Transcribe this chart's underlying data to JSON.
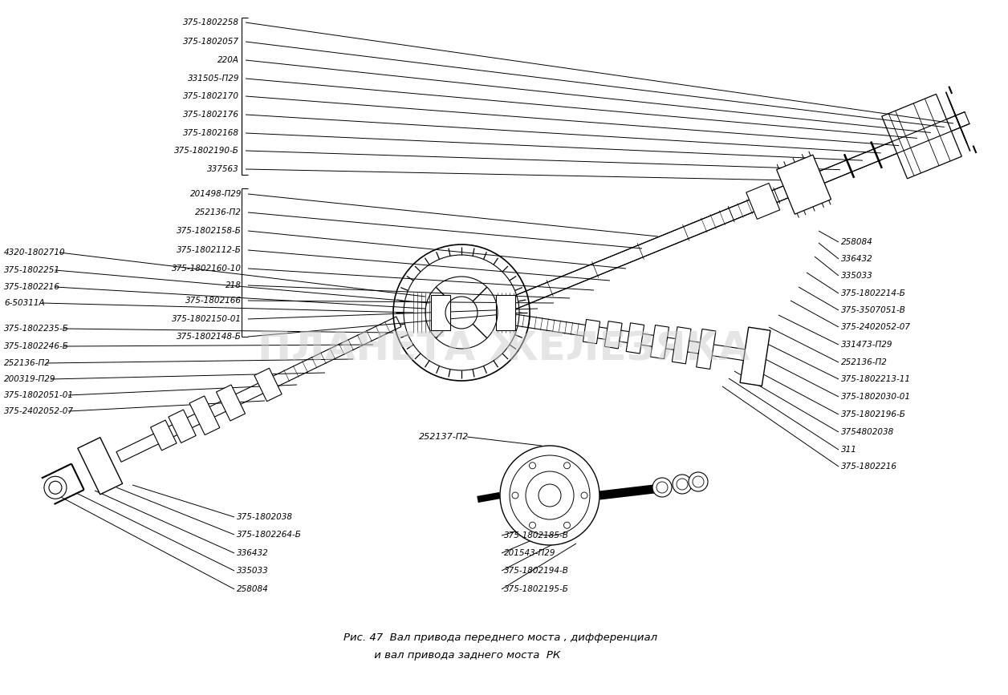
{
  "title_line1": "Рис. 47  Вал привода переднего моста , дифференциал",
  "title_line2": "         и вал привода заднего моста  РК",
  "background_color": "#ffffff",
  "fig_width": 12.56,
  "fig_height": 8.67,
  "watermark": "ПЛАНЕТА ЖЕЛЕЗЯКА",
  "group1_labels": [
    "375-1802258",
    "375-1802057",
    "220А",
    "331505-П29",
    "375-1802170",
    "375-1802176",
    "375-1802168",
    "375-1802190-Б",
    "337563"
  ],
  "group2_labels": [
    "201498-П29",
    "252136-П2",
    "375-1802158-Б",
    "375-1802112-Б",
    "375-1802160-10",
    "218",
    "375-1802166",
    "375-1802150-01",
    "375-1802148-Б"
  ],
  "left_labels": [
    "4320-1802710",
    "375-1802251",
    "375-1802216",
    "6-50311А",
    "",
    "375-1802235-Б",
    "375-1802246-Б",
    "252136-П2",
    "200319-П29",
    "375-1802051-01",
    "375-2402052-07"
  ],
  "bottom_left_labels": [
    "375-1802038",
    "375-1802264-Б",
    "336432",
    "335033",
    "258084"
  ],
  "right_labels": [
    "258084",
    "336432",
    "335033",
    "375-1802214-Б",
    "375-3507051-В",
    "375-2402052-07",
    "331473-П29",
    "252136-П2",
    "375-1802213-11",
    "375-1802030-01",
    "375-1802196-Б",
    "3754802038",
    "311",
    "375-1802216"
  ],
  "bottom_center_label": "252137-П2",
  "bottom_center_labels": [
    "375-1802185-В",
    "201543-П29",
    "375-1802194-В",
    "375-1802195-Б"
  ]
}
